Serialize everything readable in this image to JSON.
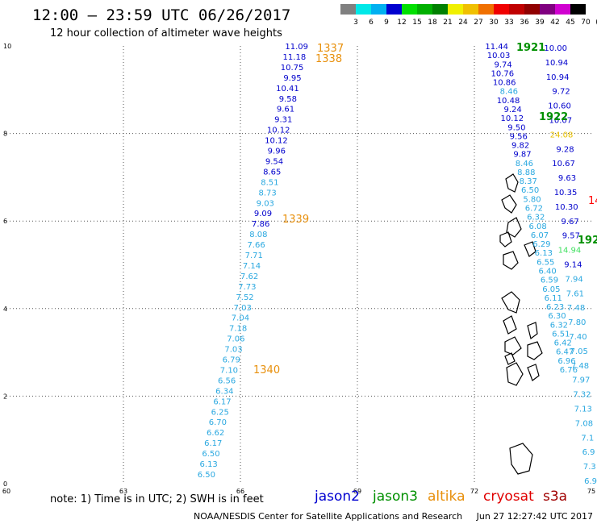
{
  "header": {
    "title": "12:00 – 23:59 UTC 06/26/2017",
    "subtitle": "12 hour collection of altimeter wave heights"
  },
  "legend": {
    "labels": [
      "3",
      "6",
      "9",
      "12",
      "15",
      "18",
      "21",
      "24",
      "27",
      "30",
      "33",
      "36",
      "39",
      "42",
      "45",
      "70",
      "(ft)"
    ],
    "colors": [
      "#808080",
      "#00e8e8",
      "#00b0f0",
      "#0000d0",
      "#00e000",
      "#00b000",
      "#008000",
      "#f0f000",
      "#f0c000",
      "#f07000",
      "#f00000",
      "#c00000",
      "#900000",
      "#800080",
      "#d000d0",
      "#000000"
    ]
  },
  "map": {
    "lon_range": [
      60,
      75
    ],
    "lat_range": [
      0,
      10
    ],
    "x_ticks": [
      "60",
      "63",
      "66",
      "69",
      "72",
      "75"
    ],
    "y_ticks": [
      "0",
      "2",
      "4",
      "6",
      "8",
      "10"
    ],
    "grid": "dotted"
  },
  "passes": {
    "p1337": {
      "label": "1337",
      "color": "#e8900c"
    },
    "p1338": {
      "label": "1338",
      "color": "#e8900c"
    },
    "p1339": {
      "label": "1339",
      "color": "#e8900c"
    },
    "p1340": {
      "label": "1340",
      "color": "#e8900c"
    },
    "p1921": {
      "label": "1921",
      "color": "#009000"
    },
    "p1922": {
      "label": "1922",
      "color": "#009000"
    },
    "p192x": {
      "label": "192",
      "color": "#009000"
    },
    "p14x": {
      "label": "14",
      "color": "#ff0000"
    }
  },
  "track_a": {
    "colors": [
      "#0000cc",
      "#0000cc",
      "#0000cc",
      "#0000cc",
      "#0000cc",
      "#0000cc",
      "#0000cc",
      "#0000cc",
      "#0000cc",
      "#0000cc",
      "#0000cc",
      "#0000cc",
      "#0000cc",
      "#2aa8e0",
      "#2aa8e0",
      "#2aa8e0",
      "#0000cc",
      "#0000cc",
      "#2aa8e0",
      "#2aa8e0",
      "#2aa8e0",
      "#2aa8e0",
      "#2aa8e0",
      "#2aa8e0",
      "#2aa8e0",
      "#2aa8e0",
      "#2aa8e0",
      "#2aa8e0",
      "#2aa8e0",
      "#2aa8e0",
      "#2aa8e0",
      "#2aa8e0",
      "#2aa8e0",
      "#2aa8e0",
      "#2aa8e0",
      "#2aa8e0",
      "#2aa8e0",
      "#2aa8e0",
      "#2aa8e0",
      "#2aa8e0",
      "#2aa8e0",
      "#2aa8e0",
      "#2aa8e0",
      "#2aa8e0",
      "#2aa8e0",
      "#2aa8e0",
      "#2aa8e0",
      "#2aa8e0",
      "#2aa8e0"
    ],
    "values": [
      "11.09",
      "11.18",
      "10.75",
      "9.95",
      "10.41",
      "9.58",
      "9.61",
      "9.31",
      "10.12",
      "10.12",
      "9.96",
      "9.54",
      "8.65",
      "8.51",
      "8.73",
      "9.03",
      "9.09",
      "7.86",
      "8.08",
      "7.66",
      "7.71",
      "7.14",
      "7.62",
      "7.73",
      "7.52",
      "7.03",
      "7.04",
      "7.18",
      "7.06",
      "7.03",
      "6.79",
      "7.10",
      "6.56",
      "6.34",
      "6.17",
      "6.25",
      "6.70",
      "6.62",
      "6.17",
      "6.50",
      "6.13",
      "6.50"
    ]
  },
  "track_b": {
    "values": [
      "11.44",
      "10.03",
      "9.74",
      "10.76",
      "10.86",
      "8.46",
      "10.48",
      "9.24",
      "10.12",
      "9.50",
      "9.56",
      "9.82",
      "9.87",
      "8.46",
      "8.88",
      "8.37",
      "6.50",
      "5.80",
      "6.72",
      "6.32",
      "6.08",
      "6.07",
      "6.29",
      "6.13",
      "6.55",
      "6.40",
      "6.59",
      "6.05",
      "6.11",
      "6.23",
      "6.30",
      "6.32",
      "6.51",
      "6.42",
      "6.47",
      "6.96",
      "6.76"
    ]
  },
  "track_c": {
    "values": [
      "10.00",
      "10.94",
      "10.94",
      "9.72",
      "10.60",
      "10.07",
      "24.08",
      "9.28",
      "10.67",
      "9.63",
      "10.35",
      "10.30",
      "9.67",
      "9.57",
      "14.94",
      "9.14",
      "7.94",
      "7.61",
      "7.48",
      "7.80",
      "7.40",
      "7.05",
      "7.48",
      "7.97",
      "7.32",
      "7.13",
      "7.08",
      "7.1",
      "6.9",
      "7.3",
      "6.9"
    ]
  },
  "note": "note:  1) Time is in UTC;  2) SWH is in feet",
  "satellites": [
    {
      "name": "jason2",
      "color": "#0000d0"
    },
    {
      "name": "jason3",
      "color": "#009000"
    },
    {
      "name": "altika",
      "color": "#e8900c"
    },
    {
      "name": "cryosat",
      "color": "#e00000"
    },
    {
      "name": "s3a",
      "color": "#a00000"
    }
  ],
  "footer": {
    "center": "NOAA/NESDIS Center for Satellite Applications and Research",
    "timestamp": "Jun 27 12:27:42 UTC 2017"
  }
}
